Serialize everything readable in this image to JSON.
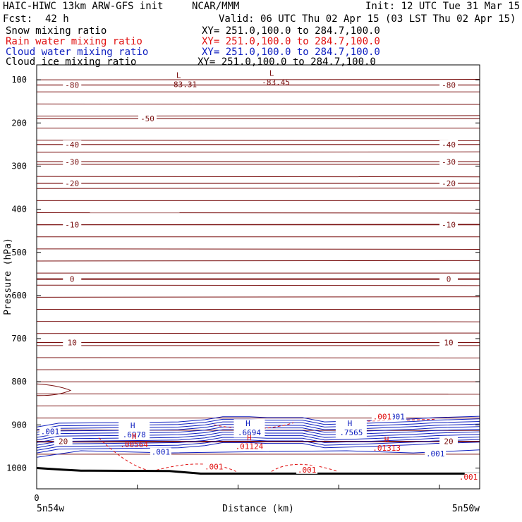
{
  "header": {
    "model": "HAIC-HIWC 13km ARW-GFS init",
    "org": "NCAR/MMM",
    "init": "Init: 12 UTC Tue 31 Mar 15",
    "fcst_label": "Fcst:",
    "fcst_value": "42 h",
    "valid": "Valid: 06 UTC Thu 02 Apr 15 (03 LST Thu 02 Apr 15)"
  },
  "fields": [
    {
      "name": "Snow mixing ratio",
      "xy": "XY= 251.0,100.0 to 284.7,100.0",
      "color": "#000000"
    },
    {
      "name": "Rain water mixing ratio",
      "xy": "XY= 251.0,100.0 to 284.7,100.0",
      "color": "#e01010"
    },
    {
      "name": "Cloud water mixing ratio",
      "xy": "XY= 251.0,100.0 to 284.7,100.0",
      "color": "#1020c0"
    },
    {
      "name": "Cloud ice mixing ratio",
      "xy": "XY= 251.0,100.0 to 284.7,100.0",
      "color": "#000000"
    }
  ],
  "colors": {
    "temperature": "#7a1010",
    "rain": "#e01010",
    "cloud": "#1020c0",
    "ground": "#000000"
  },
  "chart_data": {
    "type": "line",
    "ylabel": "Pressure (hPa)",
    "xlabel": "Distance (km)",
    "x_tick_labels": [
      "0"
    ],
    "x_end_labels": [
      "5n54w",
      "5n50w"
    ],
    "y_ticks": [
      100,
      200,
      300,
      400,
      500,
      600,
      700,
      800,
      900,
      1000
    ],
    "y_range": [
      1050,
      50
    ],
    "grid": false,
    "temperature_isotherms": [
      {
        "value": "-80",
        "pressure": 112,
        "labels_at": [
          0.08,
          0.93
        ]
      },
      {
        "value": "-50",
        "pressure": 190,
        "labels_at": [
          0.25
        ]
      },
      {
        "value": "-40",
        "pressure": 250,
        "labels_at": [
          0.08,
          0.93
        ]
      },
      {
        "value": "-30",
        "pressure": 290,
        "labels_at": [
          0.08,
          0.93
        ]
      },
      {
        "value": "-20",
        "pressure": 340,
        "labels_at": [
          0.08,
          0.93
        ]
      },
      {
        "value": "-10",
        "pressure": 436,
        "labels_at": [
          0.08,
          0.93
        ]
      },
      {
        "value": "0",
        "pressure": 562,
        "labels_at": [
          0.08,
          0.93
        ]
      },
      {
        "value": "10",
        "pressure": 709,
        "labels_at": [
          0.08,
          0.93
        ]
      },
      {
        "value": "20",
        "pressure": 938,
        "labels_at": [
          0.06,
          0.93
        ]
      }
    ],
    "temperature_extrema": [
      {
        "mark": "L",
        "value": "-83.31",
        "x": 0.33,
        "pressure": 94
      },
      {
        "mark": "L",
        "value": "-83.45",
        "x": 0.54,
        "pressure": 89
      }
    ],
    "cloud_water_maxima": [
      {
        "mark": "H",
        "value": ".6978",
        "x": 0.22,
        "pressure": 908
      },
      {
        "mark": "H",
        "value": ".6694",
        "x": 0.48,
        "pressure": 903
      },
      {
        "mark": "H",
        "value": ".7565",
        "x": 0.71,
        "pressure": 903
      }
    ],
    "cloud_water_labels": [
      {
        "value": ".001",
        "x": 0.03,
        "pressure": 918
      },
      {
        "value": ".001",
        "x": 0.28,
        "pressure": 966
      },
      {
        "value": ".001",
        "x": 0.81,
        "pressure": 884
      },
      {
        "value": ".001",
        "x": 0.9,
        "pressure": 970
      }
    ],
    "rain_maxima": [
      {
        "mark": "H",
        "value": ".00564",
        "x": 0.22,
        "pressure": 952
      },
      {
        "mark": "H",
        "value": ".01124",
        "x": 0.48,
        "pressure": 956
      },
      {
        "mark": "H",
        "value": ".01313",
        "x": 0.79,
        "pressure": 960
      }
    ],
    "rain_labels": [
      {
        "value": ".001",
        "x": 0.4,
        "pressure": 1000
      },
      {
        "value": ".001",
        "x": 0.61,
        "pressure": 1007
      },
      {
        "value": ".001",
        "x": 0.78,
        "pressure": 884
      },
      {
        "value": ".001",
        "x": 0.99,
        "pressure": 1024
      }
    ],
    "terrain_pressure": [
      [
        0,
        1000
      ],
      [
        0.06,
        1004
      ],
      [
        0.1,
        1006
      ],
      [
        0.3,
        1007
      ],
      [
        0.37,
        1013
      ],
      [
        1.0,
        1013
      ]
    ]
  }
}
